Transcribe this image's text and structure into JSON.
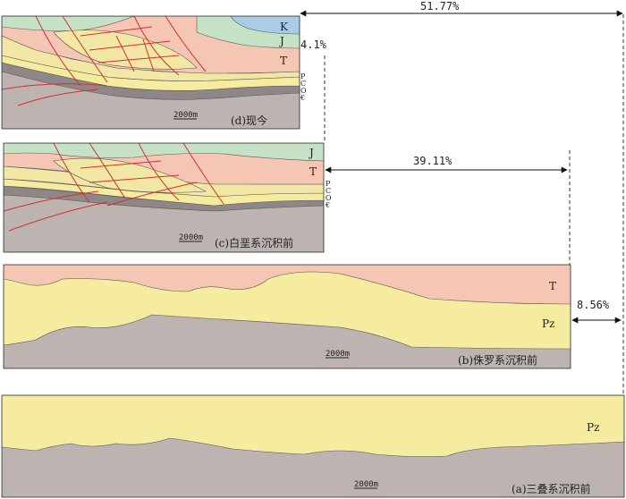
{
  "colors": {
    "K": "#a9cde6",
    "J": "#c6e2c6",
    "T": "#f5c6b4",
    "Pz": "#f6eca0",
    "upper_band": "#f3e7a6",
    "basement": "#bdb3b1",
    "fault": "#d42f2f",
    "stripe_dark": "#8f8787"
  },
  "panel_d": {
    "caption": "(d)现今",
    "scale": "2000m",
    "layers": {
      "K": "K",
      "J": "J",
      "T": "T",
      "P": "P",
      "C": "C",
      "O": "O",
      "Cam": "€"
    }
  },
  "panel_c": {
    "caption": "(c)白垩系沉积前",
    "scale": "2000m",
    "layers": {
      "J": "J",
      "T": "T",
      "P": "P",
      "C": "C",
      "O": "O",
      "Cam": "€"
    }
  },
  "panel_b": {
    "caption": "(b)侏罗系沉积前",
    "scale": "2000m",
    "layers": {
      "T": "T",
      "Pz": "Pz"
    }
  },
  "panel_a": {
    "caption": "(a)三叠系沉积前",
    "scale": "2000m",
    "layers": {
      "Pz": "Pz"
    }
  },
  "shortening": {
    "total": "51.77%",
    "d_vs_c": "4.1%",
    "c_vs_b": "39.11%",
    "b_vs_a": "8.56%"
  }
}
